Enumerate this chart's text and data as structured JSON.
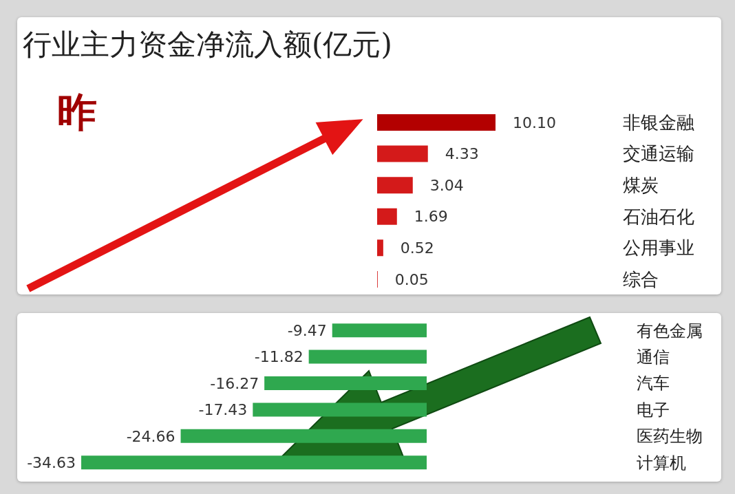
{
  "chart_data": [
    {
      "type": "bar",
      "orientation": "horizontal",
      "title": "行业主力资金净流入额(亿元)",
      "annotations": [
        "昨"
      ],
      "categories": [
        "非银金融",
        "交通运输",
        "煤炭",
        "石油石化",
        "公用事业",
        "综合"
      ],
      "values": [
        10.1,
        4.33,
        3.04,
        1.69,
        0.52,
        0.05
      ],
      "value_labels": [
        "10.10",
        "4.33",
        "3.04",
        "1.69",
        "0.52",
        "0.05"
      ],
      "colors": [
        "#b30000",
        "#d41a1a",
        "#d41a1a",
        "#d41a1a",
        "#d41a1a",
        "#d41a1a"
      ]
    },
    {
      "type": "bar",
      "orientation": "horizontal",
      "categories": [
        "有色金属",
        "通信",
        "汽车",
        "电子",
        "医药生物",
        "计算机"
      ],
      "values": [
        -9.47,
        -11.82,
        -16.27,
        -17.43,
        -24.66,
        -34.63
      ],
      "value_labels": [
        "-9.47",
        "-11.82",
        "-16.27",
        "-17.43",
        "-24.66",
        "-34.63"
      ],
      "color": "#2fa84f"
    }
  ]
}
